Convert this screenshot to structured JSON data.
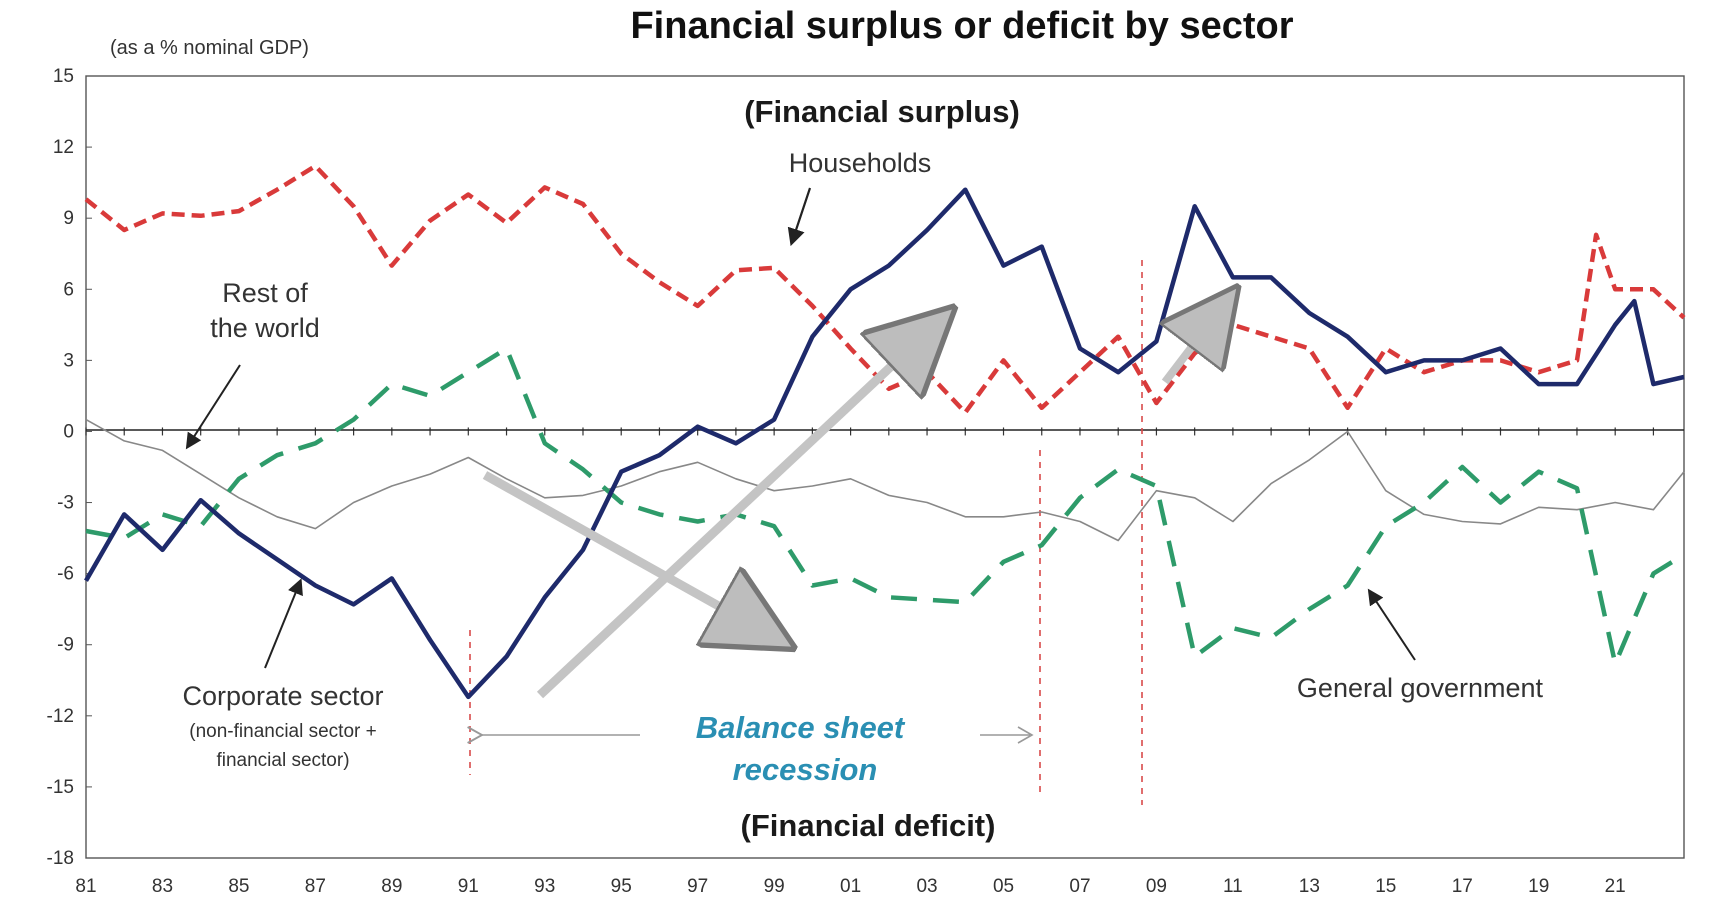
{
  "chart_data": {
    "type": "line",
    "title": "Financial surplus or deficit by sector",
    "ylabel": "(as a % nominal GDP)",
    "ylim": [
      -18,
      15
    ],
    "yticks": [
      15,
      12,
      9,
      6,
      3,
      0,
      -3,
      -6,
      -9,
      -12,
      -15,
      -18
    ],
    "xlim": [
      1981,
      2022.8
    ],
    "xticks": [
      {
        "value": 1981,
        "label": "81"
      },
      {
        "value": 1983,
        "label": "83"
      },
      {
        "value": 1985,
        "label": "85"
      },
      {
        "value": 1987,
        "label": "87"
      },
      {
        "value": 1989,
        "label": "89"
      },
      {
        "value": 1991,
        "label": "91"
      },
      {
        "value": 1993,
        "label": "93"
      },
      {
        "value": 1995,
        "label": "95"
      },
      {
        "value": 1997,
        "label": "97"
      },
      {
        "value": 1999,
        "label": "99"
      },
      {
        "value": 2001,
        "label": "01"
      },
      {
        "value": 2003,
        "label": "03"
      },
      {
        "value": 2005,
        "label": "05"
      },
      {
        "value": 2007,
        "label": "07"
      },
      {
        "value": 2009,
        "label": "09"
      },
      {
        "value": 2011,
        "label": "11"
      },
      {
        "value": 2013,
        "label": "13"
      },
      {
        "value": 2015,
        "label": "15"
      },
      {
        "value": 2017,
        "label": "17"
      },
      {
        "value": 2019,
        "label": "19"
      },
      {
        "value": 2021,
        "label": "21"
      }
    ],
    "grid": false,
    "series": [
      {
        "name": "Households",
        "color": "#d93a3a",
        "style": "dashed",
        "x": [
          1981,
          1982,
          1983,
          1984,
          1985,
          1986,
          1987,
          1988,
          1989,
          1990,
          1991,
          1992,
          1993,
          1994,
          1995,
          1996,
          1997,
          1998,
          1999,
          2000,
          2001,
          2002,
          2003,
          2004,
          2005,
          2006,
          2007,
          2008,
          2009,
          2010,
          2011,
          2012,
          2013,
          2014,
          2015,
          2016,
          2017,
          2018,
          2019,
          2020,
          2020.5,
          2021,
          2022,
          2022.8
        ],
        "values": [
          9.8,
          8.5,
          9.2,
          9.1,
          9.3,
          10.2,
          11.2,
          9.5,
          7.0,
          8.9,
          10.0,
          8.8,
          10.3,
          9.6,
          7.5,
          6.3,
          5.3,
          6.8,
          6.9,
          5.3,
          3.5,
          1.8,
          2.5,
          0.8,
          3.0,
          1.0,
          2.5,
          4.0,
          1.2,
          3.3,
          4.5,
          4.0,
          3.5,
          1.0,
          3.5,
          2.5,
          3.0,
          3.0,
          2.5,
          3.0,
          8.3,
          6.0,
          6.0,
          4.8
        ]
      },
      {
        "name": "Corporate sector",
        "color": "#1e2a6b",
        "style": "solid",
        "x": [
          1981,
          1982,
          1983,
          1984,
          1985,
          1986,
          1987,
          1988,
          1989,
          1990,
          1991,
          1992,
          1993,
          1994,
          1995,
          1996,
          1997,
          1998,
          1999,
          2000,
          2001,
          2002,
          2003,
          2004,
          2005,
          2006,
          2007,
          2008,
          2009,
          2010,
          2011,
          2012,
          2013,
          2014,
          2015,
          2016,
          2017,
          2018,
          2019,
          2020,
          2021,
          2021.5,
          2022,
          2022.8
        ],
        "values": [
          -6.3,
          -3.5,
          -5.0,
          -2.9,
          -4.3,
          -5.4,
          -6.5,
          -7.3,
          -6.2,
          -8.8,
          -11.2,
          -9.5,
          -7.0,
          -5.0,
          -1.7,
          -1.0,
          0.2,
          -0.5,
          0.5,
          4.0,
          6.0,
          7.0,
          8.5,
          10.2,
          7.0,
          7.8,
          3.5,
          2.5,
          3.8,
          9.5,
          6.5,
          6.5,
          5.0,
          4.0,
          2.5,
          3.0,
          3.0,
          3.5,
          2.0,
          2.0,
          4.5,
          5.5,
          2.0,
          2.3
        ]
      },
      {
        "name": "Rest of the world",
        "color": "#888888",
        "style": "thin",
        "x": [
          1981,
          1982,
          1983,
          1984,
          1985,
          1986,
          1987,
          1988,
          1989,
          1990,
          1991,
          1992,
          1993,
          1994,
          1995,
          1996,
          1997,
          1998,
          1999,
          2000,
          2001,
          2002,
          2003,
          2004,
          2005,
          2006,
          2007,
          2008,
          2009,
          2010,
          2011,
          2012,
          2013,
          2014,
          2015,
          2016,
          2017,
          2018,
          2019,
          2020,
          2021,
          2022,
          2022.8
        ],
        "values": [
          0.5,
          -0.4,
          -0.8,
          -1.8,
          -2.8,
          -3.6,
          -4.1,
          -3.0,
          -2.3,
          -1.8,
          -1.1,
          -2.0,
          -2.8,
          -2.7,
          -2.3,
          -1.7,
          -1.3,
          -2.0,
          -2.5,
          -2.3,
          -2.0,
          -2.7,
          -3.0,
          -3.6,
          -3.6,
          -3.4,
          -3.8,
          -4.6,
          -2.5,
          -2.8,
          -3.8,
          -2.2,
          -1.2,
          0.0,
          -2.5,
          -3.5,
          -3.8,
          -3.9,
          -3.2,
          -3.3,
          -3.0,
          -3.3,
          -1.7
        ]
      },
      {
        "name": "General government",
        "color": "#2e9b6a",
        "style": "dashed",
        "x": [
          1981,
          1982,
          1983,
          1984,
          1985,
          1986,
          1987,
          1988,
          1989,
          1990,
          1991,
          1992,
          1993,
          1994,
          1995,
          1996,
          1997,
          1998,
          1999,
          2000,
          2001,
          2002,
          2003,
          2004,
          2005,
          2006,
          2007,
          2008,
          2009,
          2010,
          2011,
          2012,
          2013,
          2014,
          2015,
          2016,
          2017,
          2018,
          2019,
          2020,
          2021,
          2022,
          2022.8
        ],
        "values": [
          -4.2,
          -4.5,
          -3.5,
          -4.0,
          -2.0,
          -1.0,
          -0.5,
          0.5,
          2.0,
          1.5,
          2.5,
          3.5,
          -0.5,
          -1.6,
          -3.0,
          -3.5,
          -3.8,
          -3.5,
          -4.0,
          -6.5,
          -6.2,
          -7.0,
          -7.1,
          -7.2,
          -5.5,
          -4.8,
          -2.8,
          -1.6,
          -2.3,
          -9.5,
          -8.3,
          -8.7,
          -7.5,
          -6.5,
          -4.0,
          -3.0,
          -1.5,
          -3.0,
          -1.7,
          -2.4,
          -9.8,
          -6.0,
          -5.2
        ]
      }
    ],
    "annotations": {
      "zone_top": "(Financial surplus)",
      "zone_bottom": "(Financial deficit)",
      "households": "Households",
      "rest_line1": "Rest of",
      "rest_line2": "the world",
      "corp_line1": "Corporate sector",
      "corp_line2": "(non-financial sector +",
      "corp_line3": "financial sector)",
      "government": "General government",
      "bsr_line1": "Balance sheet",
      "bsr_line2": "recession"
    }
  }
}
